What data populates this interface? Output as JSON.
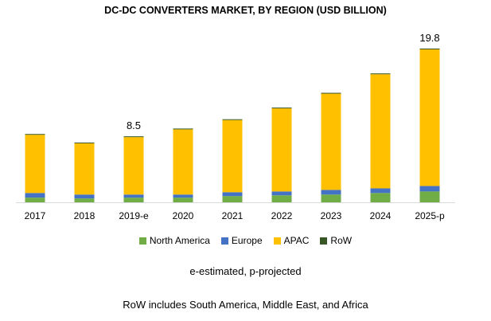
{
  "chart_data": {
    "type": "bar",
    "stacked": true,
    "title": "DC-DC CONVERTERS MARKET, BY REGION (USD BILLION)",
    "categories": [
      "2017",
      "2018",
      "2019-e",
      "2020",
      "2021",
      "2022",
      "2023",
      "2024",
      "2025-p"
    ],
    "series": [
      {
        "name": "North America",
        "color": "#70ad47",
        "values": [
          0.6,
          0.5,
          0.6,
          0.6,
          0.8,
          0.9,
          1.0,
          1.2,
          1.4
        ]
      },
      {
        "name": "Europe",
        "color": "#4472c4",
        "values": [
          0.6,
          0.5,
          0.4,
          0.4,
          0.5,
          0.5,
          0.6,
          0.6,
          0.7
        ]
      },
      {
        "name": "APAC",
        "color": "#ffc000",
        "values": [
          7.5,
          6.6,
          7.4,
          8.4,
          9.3,
          10.7,
          12.4,
          14.7,
          17.6
        ]
      },
      {
        "name": "RoW",
        "color": "#375623",
        "values": [
          0.1,
          0.1,
          0.1,
          0.1,
          0.1,
          0.1,
          0.1,
          0.1,
          0.1
        ]
      }
    ],
    "data_labels": [
      {
        "category": "2019-e",
        "text": "8.5"
      },
      {
        "category": "2025-p",
        "text": "19.8"
      }
    ],
    "ylim": [
      0,
      20
    ],
    "grid": false,
    "legend_position": "bottom",
    "xlabel": "",
    "ylabel": ""
  },
  "notes": {
    "estimate": "e-estimated, p-projected",
    "row": "RoW includes South America, Middle East, and Africa"
  }
}
